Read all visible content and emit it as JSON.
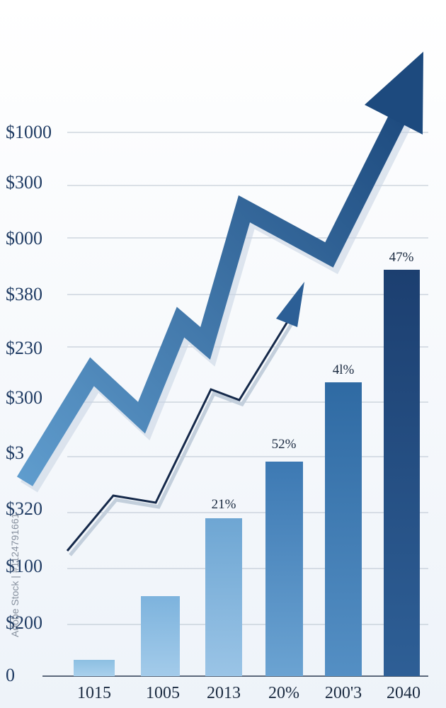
{
  "y_labels": [
    "$1000",
    "$300",
    "$000",
    "$380",
    "$230",
    "$300",
    "$3",
    "$320",
    "$100",
    "$200",
    "0"
  ],
  "x_labels": [
    "1015",
    "1005",
    "2013",
    "20%",
    "200'3",
    "2040"
  ],
  "bar_labels": [
    "21%",
    "52%",
    "4l%",
    "47%"
  ],
  "watermark": "Adobe Stock | #1124791661"
}
